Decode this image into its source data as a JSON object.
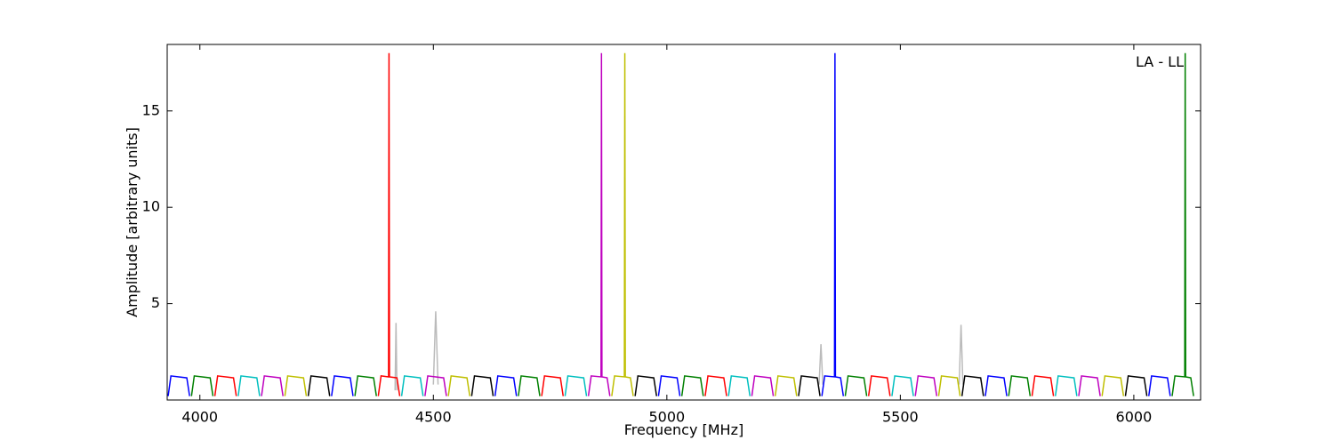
{
  "chart_data": {
    "type": "line",
    "xlabel": "Frequency [MHz]",
    "ylabel": "Amplitude [arbitrary units]",
    "annotation": "LA - LL",
    "xlim": [
      3930,
      6143
    ],
    "ylim": [
      0,
      18.45
    ],
    "xticks": [
      4000,
      4500,
      5000,
      5500,
      6000
    ],
    "yticks": [
      5,
      10,
      15
    ],
    "series": [
      {
        "color": "#bbbbbb",
        "x": [
          4418,
          4420,
          4422,
          4424,
          4500,
          4505,
          4510,
          4512,
          5326,
          5330,
          5334,
          5336,
          5626,
          5630,
          5634
        ],
        "values": [
          0.5,
          4,
          0.5,
          null,
          0.8,
          4.6,
          0.8,
          null,
          0.8,
          2.9,
          0.8,
          null,
          0.8,
          3.9,
          0.8
        ]
      },
      {
        "color": "#0000ff",
        "x": [
          3932,
          3938,
          3972,
          3978,
          3979,
          4282,
          4288,
          4322,
          4328,
          4329,
          4632,
          4638,
          4672,
          4678,
          4679,
          4982,
          4988,
          5022,
          5028,
          5029,
          5332,
          5338,
          5359,
          5360,
          5361,
          5372,
          5378,
          5379,
          5682,
          5688,
          5722,
          5728,
          5729,
          6032,
          6038,
          6072,
          6078
        ],
        "values": [
          0.2,
          1.25,
          1.15,
          0.2,
          null,
          0.2,
          1.25,
          1.15,
          0.2,
          null,
          0.2,
          1.25,
          1.15,
          0.2,
          null,
          0.2,
          1.25,
          1.15,
          0.2,
          null,
          0.2,
          1.25,
          1.2,
          18,
          1.2,
          1.15,
          0.2,
          null,
          0.2,
          1.25,
          1.15,
          0.2,
          null,
          0.2,
          1.25,
          1.15,
          0.2
        ]
      },
      {
        "color": "#008000",
        "x": [
          3982,
          3988,
          4022,
          4028,
          4029,
          4332,
          4338,
          4372,
          4378,
          4379,
          4682,
          4688,
          4722,
          4728,
          4729,
          5032,
          5038,
          5072,
          5078,
          5079,
          5382,
          5388,
          5422,
          5428,
          5429,
          5732,
          5738,
          5772,
          5778,
          5779,
          6082,
          6088,
          6109,
          6110,
          6111,
          6122,
          6128
        ],
        "values": [
          0.2,
          1.25,
          1.15,
          0.2,
          null,
          0.2,
          1.25,
          1.15,
          0.2,
          null,
          0.2,
          1.25,
          1.15,
          0.2,
          null,
          0.2,
          1.25,
          1.15,
          0.2,
          null,
          0.2,
          1.25,
          1.15,
          0.2,
          null,
          0.2,
          1.25,
          1.15,
          0.2,
          null,
          0.2,
          1.25,
          1.2,
          18,
          1.2,
          1.15,
          0.2
        ]
      },
      {
        "color": "#ff0000",
        "x": [
          4032,
          4038,
          4072,
          4078,
          4079,
          4382,
          4388,
          4404,
          4405,
          4406,
          4422,
          4428,
          4429,
          4732,
          4738,
          4772,
          4778,
          4779,
          5082,
          5088,
          5122,
          5128,
          5129,
          5432,
          5438,
          5472,
          5478,
          5479,
          5782,
          5788,
          5822,
          5828
        ],
        "values": [
          0.2,
          1.25,
          1.15,
          0.2,
          null,
          0.2,
          1.25,
          1.2,
          18,
          1.2,
          1.15,
          0.2,
          null,
          0.2,
          1.25,
          1.15,
          0.2,
          null,
          0.2,
          1.25,
          1.15,
          0.2,
          null,
          0.2,
          1.25,
          1.15,
          0.2,
          null,
          0.2,
          1.25,
          1.15,
          0.2
        ]
      },
      {
        "color": "#00bfbf",
        "x": [
          4082,
          4088,
          4122,
          4128,
          4129,
          4432,
          4438,
          4472,
          4478,
          4479,
          4782,
          4788,
          4822,
          4828,
          4829,
          5132,
          5138,
          5172,
          5178,
          5179,
          5482,
          5488,
          5522,
          5528,
          5529,
          5832,
          5838,
          5872,
          5878
        ],
        "values": [
          0.2,
          1.25,
          1.15,
          0.2,
          null,
          0.2,
          1.25,
          1.15,
          0.2,
          null,
          0.2,
          1.25,
          1.15,
          0.2,
          null,
          0.2,
          1.25,
          1.15,
          0.2,
          null,
          0.2,
          1.25,
          1.15,
          0.2,
          null,
          0.2,
          1.25,
          1.15,
          0.2
        ]
      },
      {
        "color": "#bf00bf",
        "x": [
          4132,
          4138,
          4172,
          4178,
          4179,
          4482,
          4488,
          4522,
          4528,
          4529,
          4832,
          4838,
          4859,
          4860,
          4861,
          4872,
          4878,
          4879,
          5182,
          5188,
          5222,
          5228,
          5229,
          5532,
          5538,
          5572,
          5578,
          5579,
          5882,
          5888,
          5922,
          5928
        ],
        "values": [
          0.2,
          1.25,
          1.15,
          0.2,
          null,
          0.2,
          1.25,
          1.15,
          0.2,
          null,
          0.2,
          1.25,
          1.2,
          18,
          1.2,
          1.15,
          0.2,
          null,
          0.2,
          1.25,
          1.15,
          0.2,
          null,
          0.2,
          1.25,
          1.15,
          0.2,
          null,
          0.2,
          1.25,
          1.15,
          0.2
        ]
      },
      {
        "color": "#bfbf00",
        "x": [
          4182,
          4188,
          4222,
          4228,
          4229,
          4532,
          4538,
          4572,
          4578,
          4579,
          4882,
          4888,
          4909,
          4910,
          4911,
          4922,
          4928,
          4929,
          5232,
          5238,
          5272,
          5278,
          5279,
          5582,
          5588,
          5622,
          5628,
          5629,
          5932,
          5938,
          5972,
          5978
        ],
        "values": [
          0.2,
          1.25,
          1.15,
          0.2,
          null,
          0.2,
          1.25,
          1.15,
          0.2,
          null,
          0.2,
          1.25,
          1.2,
          18,
          1.2,
          1.15,
          0.2,
          null,
          0.2,
          1.25,
          1.15,
          0.2,
          null,
          0.2,
          1.25,
          1.15,
          0.2,
          null,
          0.2,
          1.25,
          1.15,
          0.2
        ]
      },
      {
        "color": "#000000",
        "x": [
          4232,
          4238,
          4272,
          4278,
          4279,
          4582,
          4588,
          4622,
          4628,
          4629,
          4932,
          4938,
          4972,
          4978,
          4979,
          5282,
          5288,
          5322,
          5328,
          5329,
          5632,
          5638,
          5672,
          5678,
          5679,
          5982,
          5988,
          6022,
          6028
        ],
        "values": [
          0.2,
          1.25,
          1.15,
          0.2,
          null,
          0.2,
          1.25,
          1.15,
          0.2,
          null,
          0.2,
          1.25,
          1.15,
          0.2,
          null,
          0.2,
          1.25,
          1.15,
          0.2,
          null,
          0.2,
          1.25,
          1.15,
          0.2,
          null,
          0.2,
          1.25,
          1.15,
          0.2
        ]
      }
    ]
  }
}
